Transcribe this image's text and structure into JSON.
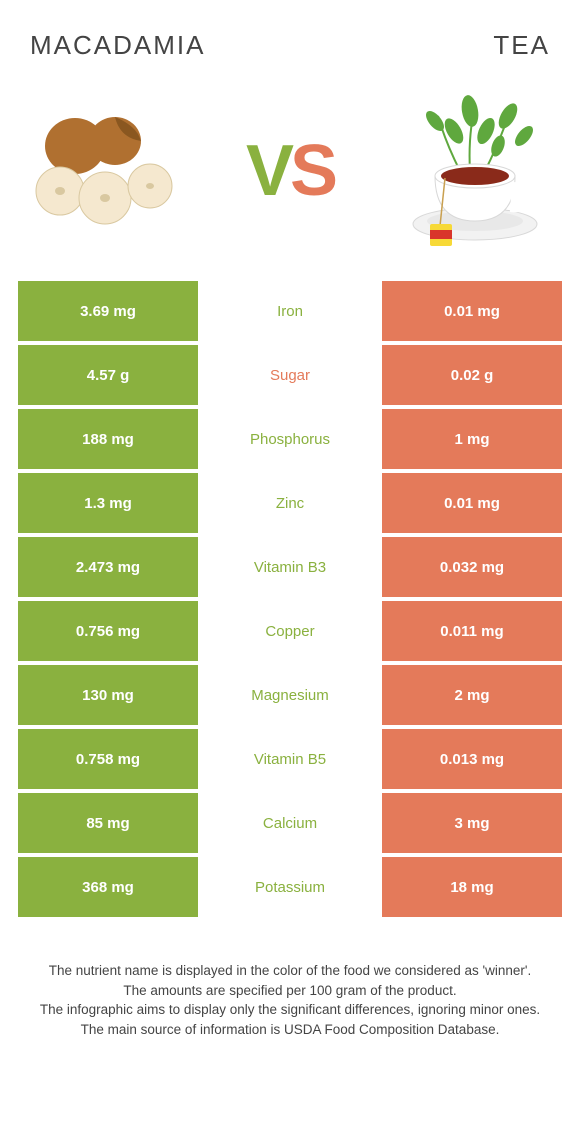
{
  "titles": {
    "left": "MACADAMIA",
    "right": "TEA"
  },
  "vs": {
    "v": "V",
    "s": "S"
  },
  "colors": {
    "left": "#8ab13f",
    "right": "#e47a5a",
    "bg": "#ffffff",
    "text": "#444444"
  },
  "rows": [
    {
      "left": "3.69 mg",
      "label": "Iron",
      "right": "0.01 mg",
      "label_color": "#8ab13f"
    },
    {
      "left": "4.57 g",
      "label": "Sugar",
      "right": "0.02 g",
      "label_color": "#e47a5a"
    },
    {
      "left": "188 mg",
      "label": "Phosphorus",
      "right": "1 mg",
      "label_color": "#8ab13f"
    },
    {
      "left": "1.3 mg",
      "label": "Zinc",
      "right": "0.01 mg",
      "label_color": "#8ab13f"
    },
    {
      "left": "2.473 mg",
      "label": "Vitamin B3",
      "right": "0.032 mg",
      "label_color": "#8ab13f"
    },
    {
      "left": "0.756 mg",
      "label": "Copper",
      "right": "0.011 mg",
      "label_color": "#8ab13f"
    },
    {
      "left": "130 mg",
      "label": "Magnesium",
      "right": "2 mg",
      "label_color": "#8ab13f"
    },
    {
      "left": "0.758 mg",
      "label": "Vitamin B5",
      "right": "0.013 mg",
      "label_color": "#8ab13f"
    },
    {
      "left": "85 mg",
      "label": "Calcium",
      "right": "3 mg",
      "label_color": "#8ab13f"
    },
    {
      "left": "368 mg",
      "label": "Potassium",
      "right": "18 mg",
      "label_color": "#8ab13f"
    }
  ],
  "footer": {
    "l1": "The nutrient name is displayed in the color of the food we considered as 'winner'.",
    "l2": "The amounts are specified per 100 gram of the product.",
    "l3": "The infographic aims to display only the significant differences, ignoring minor ones.",
    "l4": "The main source of information is USDA Food Composition Database."
  }
}
